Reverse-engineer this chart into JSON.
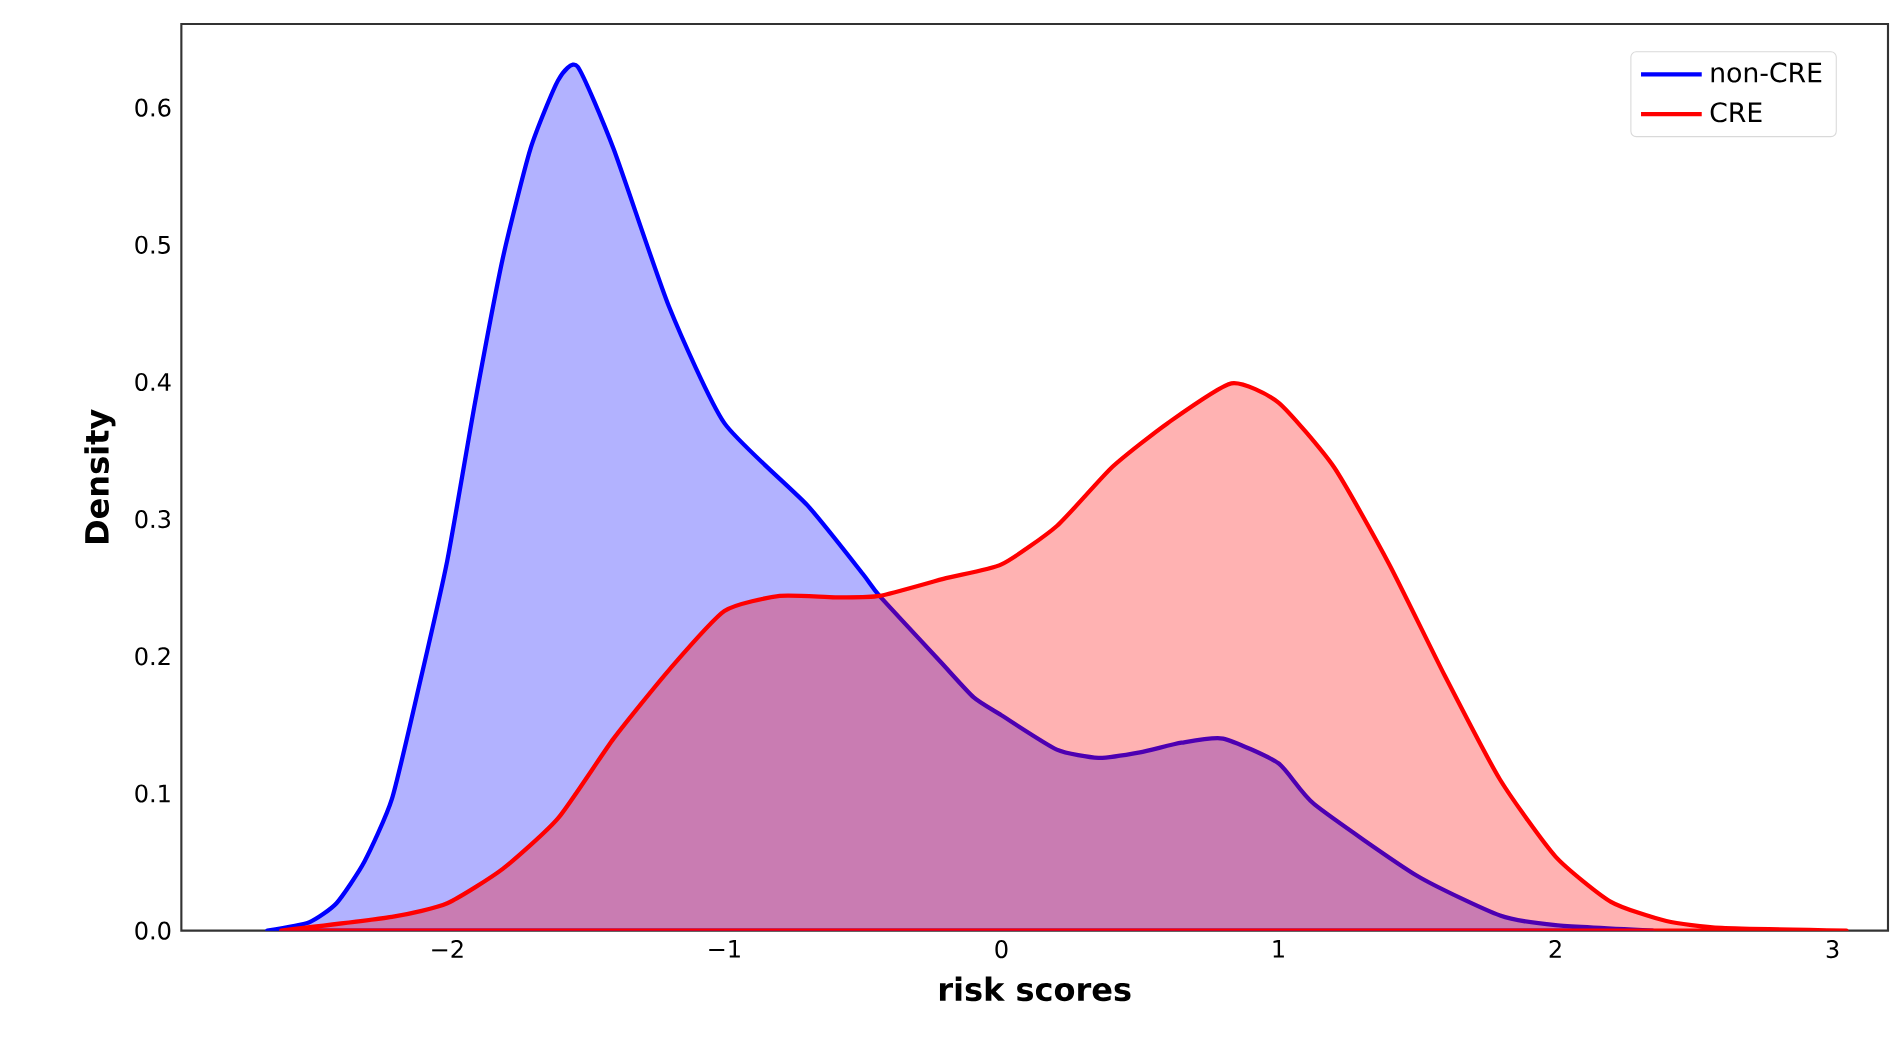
{
  "chart_data": {
    "type": "area",
    "xlabel": "risk scores",
    "ylabel": "Density",
    "xlim": [
      -2.96,
      3.2
    ],
    "ylim": [
      0,
      0.661
    ],
    "xticks": [
      {
        "value": -2,
        "label": "−2"
      },
      {
        "value": -1,
        "label": "−1"
      },
      0,
      1,
      2,
      3
    ],
    "yticks": [
      {
        "value": 0,
        "label": "0.0"
      },
      {
        "value": 0.1,
        "label": "0.1"
      },
      {
        "value": 0.2,
        "label": "0.2"
      },
      {
        "value": 0.3,
        "label": "0.3"
      },
      {
        "value": 0.4,
        "label": "0.4"
      },
      {
        "value": 0.5,
        "label": "0.5"
      },
      {
        "value": 0.6,
        "label": "0.6"
      }
    ],
    "grid": false,
    "legend": "top right",
    "series": [
      {
        "name": "non-CRE",
        "color": "#0000ff",
        "x": [
          -2.65,
          -2.5,
          -2.4,
          -2.3,
          -2.2,
          -2.1,
          -2.0,
          -1.9,
          -1.8,
          -1.7,
          -1.6,
          -1.53,
          -1.4,
          -1.2,
          -1.0,
          -0.7,
          -0.5,
          -0.44,
          -0.22,
          -0.1,
          0.0,
          0.2,
          0.35,
          0.5,
          0.65,
          0.8,
          1.0,
          1.13,
          1.5,
          1.8,
          2.0,
          2.35
        ],
        "values": [
          0,
          0.006,
          0.02,
          0.05,
          0.096,
          0.18,
          0.27,
          0.385,
          0.49,
          0.57,
          0.62,
          0.63,
          0.57,
          0.455,
          0.37,
          0.31,
          0.26,
          0.244,
          0.196,
          0.17,
          0.157,
          0.132,
          0.126,
          0.13,
          0.137,
          0.14,
          0.122,
          0.092,
          0.04,
          0.011,
          0.004,
          0
        ]
      },
      {
        "name": "CRE",
        "color": "#ff0000",
        "x": [
          -2.6,
          -2.2,
          -2.0,
          -1.8,
          -1.6,
          -1.4,
          -1.2,
          -1.0,
          -0.8,
          -0.6,
          -0.44,
          -0.2,
          0.0,
          0.2,
          0.4,
          0.6,
          0.83,
          1.0,
          1.2,
          1.4,
          1.6,
          1.8,
          2.0,
          2.2,
          2.4,
          2.6,
          3.05
        ],
        "values": [
          0,
          0.01,
          0.02,
          0.045,
          0.082,
          0.14,
          0.19,
          0.233,
          0.244,
          0.243,
          0.244,
          0.257,
          0.267,
          0.295,
          0.338,
          0.37,
          0.399,
          0.385,
          0.338,
          0.267,
          0.186,
          0.11,
          0.054,
          0.021,
          0.007,
          0.002,
          0
        ]
      }
    ]
  }
}
